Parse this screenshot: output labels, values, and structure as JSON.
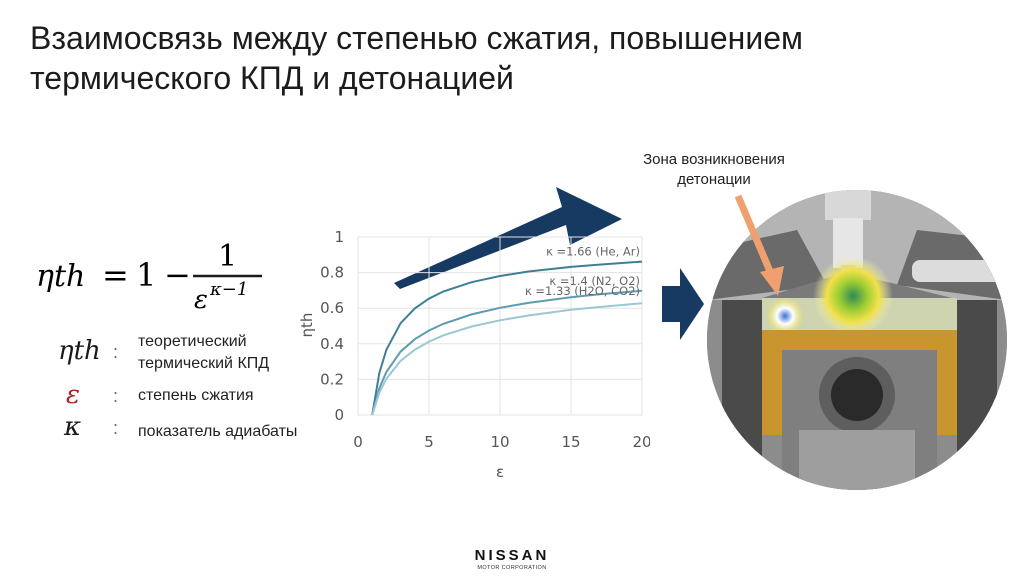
{
  "slide": {
    "title_line1": "Взаимосвязь между степенью сжатия, повышением",
    "title_line2": "термического КПД и детонацией"
  },
  "formula": {
    "lhs": "ηth",
    "equals": "=",
    "one": "1",
    "minus": "−",
    "numerator": "1",
    "base": "ε",
    "exponent": "κ−1"
  },
  "legend": [
    {
      "symbol": "ηth",
      "colon": ":",
      "text_lines": [
        "теоретический",
        "термический КПД"
      ],
      "symbol_color": "#1a1a1a"
    },
    {
      "symbol": "ε",
      "colon": ":",
      "text_lines": [
        "степень сжатия"
      ],
      "symbol_color": "#b01e23"
    },
    {
      "symbol": "κ",
      "colon": ":",
      "text_lines": [
        "показатель адиабаты"
      ],
      "symbol_color": "#1a1a1a"
    }
  ],
  "chart_data": {
    "type": "line",
    "xlabel": "ε",
    "ylabel": "ηth",
    "xlim": [
      0,
      20
    ],
    "ylim": [
      0,
      1
    ],
    "xticks": [
      "0",
      "5",
      "10",
      "15",
      "20"
    ],
    "yticks": [
      "0",
      "0.2",
      "0.4",
      "0.6",
      "0.8",
      "1"
    ],
    "grid": true,
    "series": [
      {
        "name": "κ =1.66 (He, Ar)",
        "kappa": 1.66,
        "color": "#3f7f95",
        "x": [
          1,
          1.5,
          2,
          3,
          4,
          5,
          6,
          8,
          10,
          12,
          15,
          17,
          20
        ],
        "y": [
          0,
          0.235,
          0.367,
          0.516,
          0.599,
          0.654,
          0.694,
          0.746,
          0.781,
          0.806,
          0.832,
          0.845,
          0.862
        ]
      },
      {
        "name": "κ =1.4 (N2, O2)",
        "kappa": 1.4,
        "color": "#5d9cb0",
        "x": [
          1,
          1.5,
          2,
          3,
          4,
          5,
          6,
          8,
          10,
          12,
          15,
          17,
          20
        ],
        "y": [
          0,
          0.15,
          0.242,
          0.356,
          0.426,
          0.475,
          0.512,
          0.565,
          0.602,
          0.63,
          0.661,
          0.678,
          0.698
        ]
      },
      {
        "name": "κ =1.33 (H2O, CO2)",
        "kappa": 1.33,
        "color": "#9cc7d3",
        "x": [
          1,
          1.5,
          2,
          3,
          4,
          5,
          6,
          8,
          10,
          12,
          15,
          17,
          20
        ],
        "y": [
          0,
          0.125,
          0.204,
          0.304,
          0.367,
          0.412,
          0.447,
          0.497,
          0.532,
          0.559,
          0.591,
          0.607,
          0.628
        ]
      }
    ],
    "legend_placement": "inline-right"
  },
  "detonation_label": [
    "Зона возникновения",
    "детонации"
  ],
  "logo": {
    "main": "NISSAN",
    "sub": "MOTOR CORPORATION"
  },
  "colors": {
    "accent_navy": "#173a63",
    "pointer_orange": "#f0a070",
    "piston_gold": "#c8952f",
    "epsilon_red": "#b01e23"
  }
}
